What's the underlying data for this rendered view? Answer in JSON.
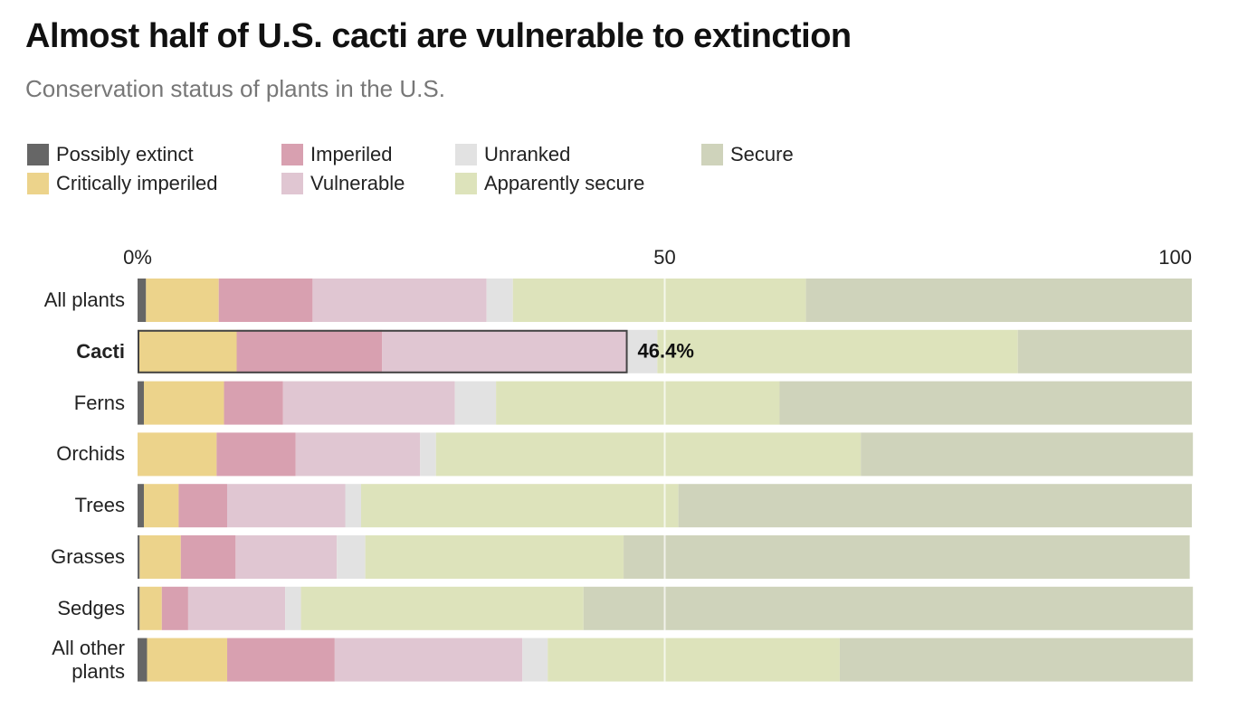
{
  "chart_data": {
    "type": "stacked-bar-horizontal",
    "title": "Almost half of U.S. cacti are vulnerable to extinction",
    "subtitle": "Conservation status of plants in the U.S.",
    "categories": [
      "All plants",
      "Cacti",
      "Ferns",
      "Orchids",
      "Trees",
      "Grasses",
      "Sedges",
      "All other plants"
    ],
    "highlight": "Cacti",
    "annotation": "46.4%",
    "xlim": [
      0,
      100
    ],
    "xticks": [
      {
        "value": 0,
        "label": "0%"
      },
      50,
      100
    ],
    "grid": true,
    "series": [
      {
        "name": "Possibly extinct",
        "color": "#666666",
        "values": [
          0.8,
          0,
          0.6,
          0,
          0.6,
          0.2,
          0.2,
          0.9
        ]
      },
      {
        "name": "Critically imperiled",
        "color": "#ecd38b",
        "values": [
          6.9,
          9.4,
          7.6,
          7.5,
          3.3,
          3.9,
          2.1,
          7.6
        ]
      },
      {
        "name": "Imperiled",
        "color": "#d8a0b0",
        "values": [
          8.9,
          13.8,
          5.6,
          7.5,
          4.6,
          5.2,
          2.5,
          10.2
        ]
      },
      {
        "name": "Vulnerable",
        "color": "#e0c6d2",
        "values": [
          16.5,
          23.2,
          16.3,
          11.8,
          11.2,
          9.6,
          9.2,
          17.8
        ]
      },
      {
        "name": "Unranked",
        "color": "#e2e2e2",
        "values": [
          2.5,
          2.9,
          3.9,
          1.5,
          1.5,
          2.7,
          1.5,
          2.4
        ]
      },
      {
        "name": "Apparently secure",
        "color": "#dde3bb",
        "values": [
          27.8,
          34.2,
          26.9,
          40.3,
          30.1,
          24.5,
          26.8,
          27.7
        ]
      },
      {
        "name": "Secure",
        "color": "#cfd3bb",
        "values": [
          36.6,
          16.5,
          39.1,
          31.5,
          48.7,
          53.7,
          57.8,
          33.5
        ]
      }
    ]
  }
}
